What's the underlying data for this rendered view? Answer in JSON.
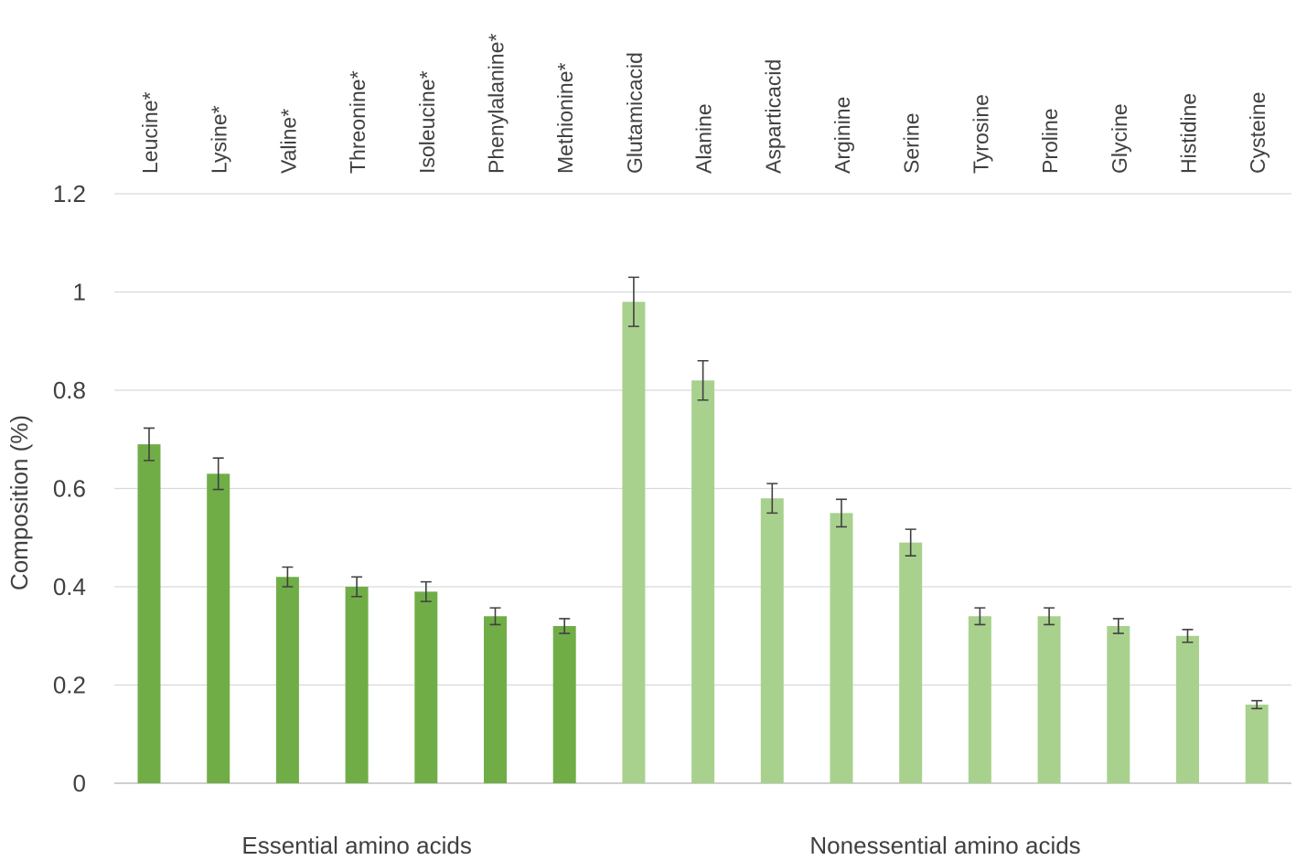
{
  "chart_data": {
    "type": "bar",
    "title": "",
    "xlabel": "",
    "ylabel": "Composition (%)",
    "ylim": [
      0,
      1.2
    ],
    "yticks": [
      0,
      0.2,
      0.4,
      0.6,
      0.8,
      1,
      1.2
    ],
    "ytick_labels": [
      "0",
      "0.2",
      "0.4",
      "0.6",
      "0.8",
      "1",
      "1.2"
    ],
    "grid": true,
    "categories": [
      "Leucine*",
      "Lysine*",
      "Valine*",
      "Threonine*",
      "Isoleucine*",
      "Phenylalanine*",
      "Methionine*",
      "Glutamicacid",
      "Alanine",
      "Asparticacid",
      "Arginine",
      "Serine",
      "Tyrosine",
      "Proline",
      "Glycine",
      "Histidine",
      "Cysteine"
    ],
    "values": [
      0.69,
      0.63,
      0.42,
      0.4,
      0.39,
      0.34,
      0.32,
      0.98,
      0.82,
      0.58,
      0.55,
      0.49,
      0.34,
      0.34,
      0.32,
      0.3,
      0.16
    ],
    "errors": [
      0.033,
      0.032,
      0.02,
      0.02,
      0.02,
      0.017,
      0.015,
      0.05,
      0.04,
      0.03,
      0.028,
      0.027,
      0.017,
      0.017,
      0.015,
      0.013,
      0.008
    ],
    "groups": [
      {
        "name": "Essential amino acids",
        "start": 0,
        "end": 6,
        "color": "#70ad47"
      },
      {
        "name": "Nonessential amino acids",
        "start": 7,
        "end": 16,
        "color": "#a9d18e"
      }
    ]
  }
}
